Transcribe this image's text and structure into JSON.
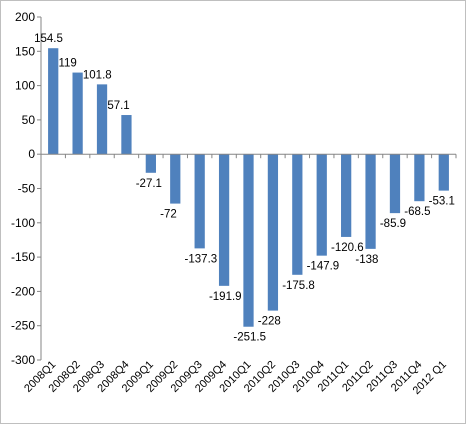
{
  "chart_data": {
    "type": "bar",
    "categories": [
      "2008Q1",
      "2008Q2",
      "2008Q3",
      "2008Q4",
      "2009Q1",
      "2009Q2",
      "2009Q3",
      "2009Q4",
      "2010Q1",
      "2010Q2",
      "2010Q3",
      "2010Q4",
      "2011Q1",
      "2011Q2",
      "2011Q3",
      "2011Q4",
      "2012 Q1"
    ],
    "values": [
      154.5,
      119,
      101.8,
      57.1,
      -27.1,
      -72,
      -137.3,
      -191.9,
      -251.5,
      -228,
      -175.8,
      -147.9,
      -120.6,
      -138,
      -85.9,
      -68.5,
      -53.1
    ],
    "data_labels": [
      "154.5",
      "119",
      "101.8",
      "57.1",
      "-27.1",
      "-72",
      "-137.3",
      "-191.9",
      "-251.5",
      "-228",
      "-175.8",
      "-147.9",
      "-120.6",
      "-138",
      "-85.9",
      "-68.5",
      "-53.1"
    ],
    "ylim": [
      -300,
      200
    ],
    "yticks": [
      200,
      150,
      100,
      50,
      0,
      -50,
      -100,
      -150,
      -200,
      -250,
      -300
    ],
    "title": "",
    "xlabel": "",
    "ylabel": "",
    "grid": false,
    "legend": "none",
    "colors": {
      "bar": "#4f81bd",
      "axis": "#868686"
    }
  }
}
